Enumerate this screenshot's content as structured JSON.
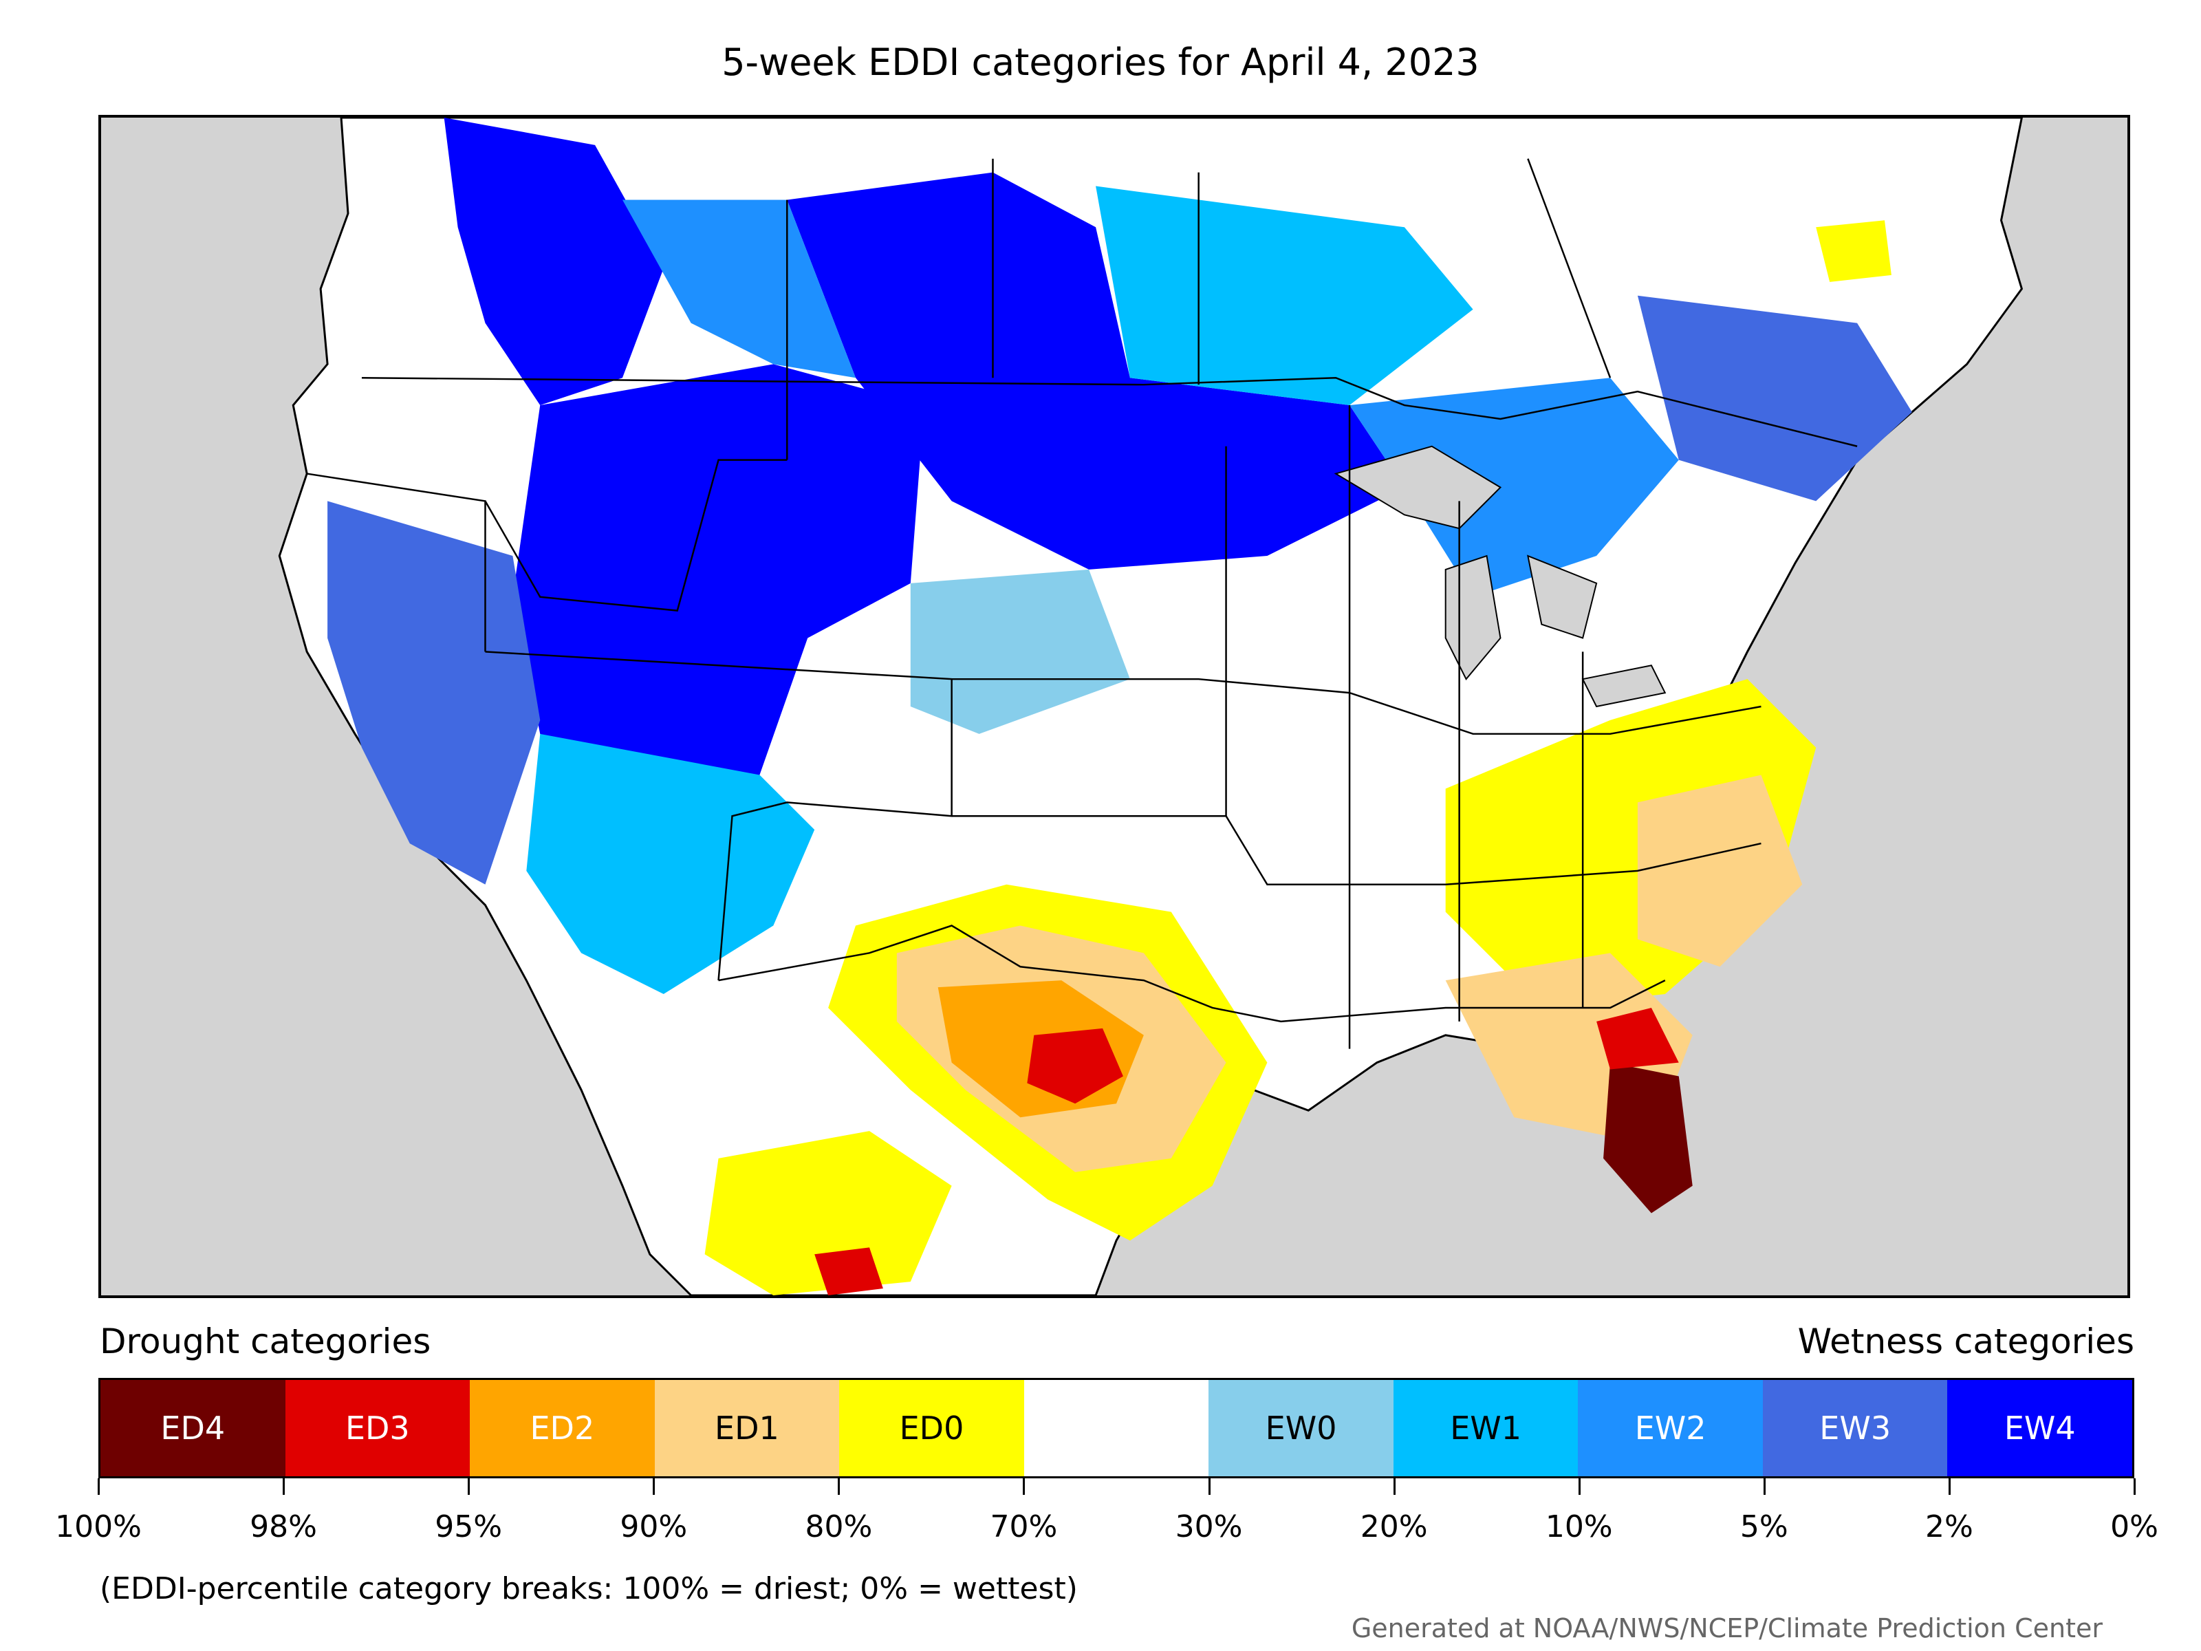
{
  "title": "5-week EDDI categories for April 4, 2023",
  "map": {
    "category_colors": {
      "ED4": "#6e0000",
      "ED3": "#e00000",
      "ED2": "#ffa500",
      "ED1": "#fdd385",
      "ED0": "#ffff00",
      "neutral": "#ffffff",
      "EW0": "#87ceeb",
      "EW1": "#00bfff",
      "EW2": "#1e90ff",
      "EW3": "#4169e1",
      "EW4": "#0000ff"
    },
    "outside_color": "#d3d3d3",
    "regions": [
      {
        "area": "Pacific Northwest / British Columbia",
        "category": "EW4"
      },
      {
        "area": "Northern Rockies and Great Basin",
        "category": "EW4"
      },
      {
        "area": "Northern Great Plains",
        "category": "EW4"
      },
      {
        "area": "California",
        "category": "EW3"
      },
      {
        "area": "Southwest US",
        "category": "EW1"
      },
      {
        "area": "Southern Canadian Prairies",
        "category": "EW1"
      },
      {
        "area": "Upper Midwest / Great Lakes",
        "category": "EW2"
      },
      {
        "area": "Quebec / New England",
        "category": "EW3"
      },
      {
        "area": "Central Plains / Midwest",
        "category": "neutral"
      },
      {
        "area": "Texas / Oklahoma",
        "category": "ED1"
      },
      {
        "area": "Central Texas",
        "category": "ED3"
      },
      {
        "area": "Ohio Valley / Mid-Atlantic",
        "category": "ED0"
      },
      {
        "area": "Virginia / North Carolina",
        "category": "ED1"
      },
      {
        "area": "Georgia",
        "category": "ED1"
      },
      {
        "area": "Florida",
        "category": "ED4"
      },
      {
        "area": "Northern Mexico",
        "category": "ED0"
      }
    ]
  },
  "legend": {
    "drought_heading": "Drought categories",
    "wetness_heading": "Wetness categories",
    "segments": [
      {
        "label": "ED4",
        "color": "#6e0000",
        "text_color": "#ffffff"
      },
      {
        "label": "ED3",
        "color": "#e00000",
        "text_color": "#ffffff"
      },
      {
        "label": "ED2",
        "color": "#ffa500",
        "text_color": "#ffffff"
      },
      {
        "label": "ED1",
        "color": "#fdd385",
        "text_color": "#000000"
      },
      {
        "label": "ED0",
        "color": "#ffff00",
        "text_color": "#000000"
      },
      {
        "label": "",
        "color": "#ffffff",
        "text_color": "#000000"
      },
      {
        "label": "EW0",
        "color": "#87ceeb",
        "text_color": "#000000"
      },
      {
        "label": "EW1",
        "color": "#00bfff",
        "text_color": "#000000"
      },
      {
        "label": "EW2",
        "color": "#1e90ff",
        "text_color": "#ffffff"
      },
      {
        "label": "EW3",
        "color": "#4169e1",
        "text_color": "#ffffff"
      },
      {
        "label": "EW4",
        "color": "#0000ff",
        "text_color": "#ffffff"
      }
    ],
    "ticks": [
      "100%",
      "98%",
      "95%",
      "90%",
      "80%",
      "70%",
      "30%",
      "20%",
      "10%",
      "5%",
      "2%",
      "0%"
    ]
  },
  "note": "(EDDI-percentile category breaks: 100% = driest; 0% = wettest)",
  "credit": "Generated at NOAA/NWS/NCEP/Climate Prediction Center"
}
